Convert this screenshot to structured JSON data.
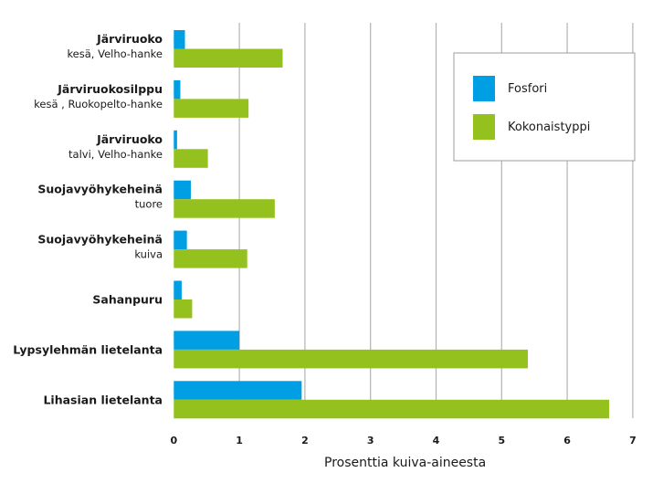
{
  "chart_data": {
    "type": "bar",
    "orientation": "horizontal",
    "categories": [
      {
        "main": "Järviruoko",
        "sub": "kesä, Velho-hanke"
      },
      {
        "main": "Järviruokosilppu",
        "sub": "kesä , Ruokopelto-hanke"
      },
      {
        "main": "Järviruoko",
        "sub": "talvi, Velho-hanke"
      },
      {
        "main": "Suojavyöhykeheinä",
        "sub": "tuore"
      },
      {
        "main": "Suojavyöhykeheinä",
        "sub": "kuiva"
      },
      {
        "main": "Sahanpuru",
        "sub": ""
      },
      {
        "main": "Lypsylehmän lietelanta",
        "sub": ""
      },
      {
        "main": "Lihasian lietelanta",
        "sub": ""
      }
    ],
    "series": [
      {
        "name": "Fosfori",
        "color": "#009FE3",
        "values": [
          0.17,
          0.1,
          0.05,
          0.26,
          0.2,
          0.12,
          1.0,
          1.95
        ]
      },
      {
        "name": "Kokonaistyppi",
        "color": "#95C11F",
        "values": [
          1.66,
          1.14,
          0.52,
          1.54,
          1.12,
          0.28,
          5.4,
          6.64
        ]
      }
    ],
    "xlabel": "Prosenttia kuiva-aineesta",
    "ylabel": "",
    "xlim": [
      0,
      7
    ],
    "xticks": [
      "0",
      "1",
      "2",
      "3",
      "4",
      "5",
      "6",
      "7"
    ],
    "grid": "vertical",
    "legend": "top-right"
  }
}
